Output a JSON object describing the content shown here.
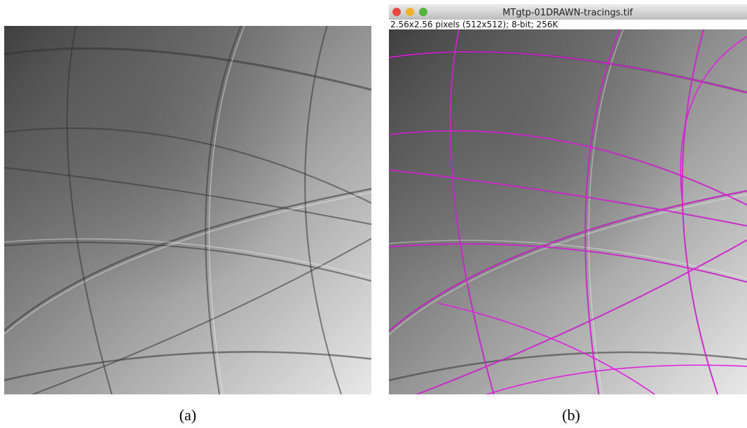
{
  "panels": [
    {
      "label": "(a)"
    },
    {
      "label": "(b)",
      "window": {
        "title": "MTgtp-01DRAWN-tracings.tif",
        "info": "2.56x2.56 pixels (512x512); 8-bit; 256K"
      }
    }
  ]
}
